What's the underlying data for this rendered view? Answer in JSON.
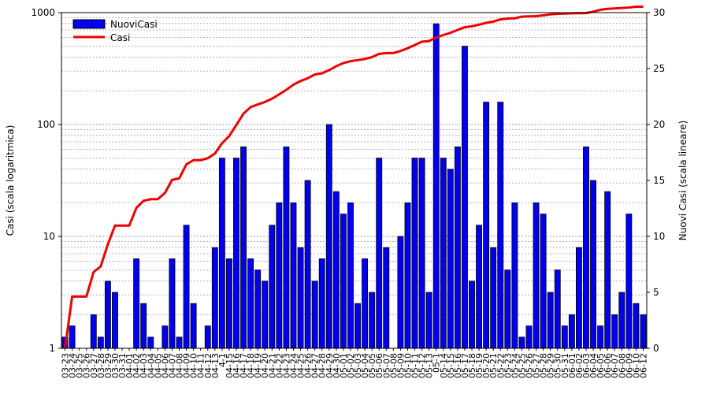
{
  "chart_data": {
    "type": "bar+line",
    "x_categories": [
      "03-23",
      "03-24",
      "03-25",
      "03-26",
      "03-27",
      "03-28",
      "03-29",
      "03-30",
      "03-31",
      "04-01",
      "04-02",
      "04-03",
      "04-04",
      "04-05",
      "04-06",
      "04-07",
      "04-08",
      "04-09",
      "04-10",
      "04-11",
      "04-12",
      "04-13",
      "04-14",
      "04-15",
      "04-16",
      "04-17",
      "04-18",
      "04-19",
      "04-20",
      "04-21",
      "04-22",
      "04-23",
      "04-24",
      "04-25",
      "04-26",
      "04-27",
      "04-28",
      "04-29",
      "04-30",
      "05-01",
      "05-02",
      "05-03",
      "05-04",
      "05-05",
      "05-06",
      "05-07",
      "05-08",
      "05-09",
      "05-10",
      "05-11",
      "05-12",
      "05-13",
      "05-14",
      "05-15",
      "05-16",
      "05-17",
      "05-18",
      "05-19",
      "05-20",
      "05-21",
      "05-22",
      "05-23",
      "05-24",
      "05-25",
      "05-26",
      "05-27",
      "05-28",
      "05-29",
      "05-30",
      "05-31",
      "06-01",
      "06-02",
      "06-03",
      "06-04",
      "06-05",
      "06-06",
      "06-07",
      "06-08",
      "06-09",
      "06-10",
      "06-11",
      "06-12"
    ],
    "x_tick_labels": [
      "03-23",
      "03-24",
      "03-25",
      "03-26",
      "03-27",
      "03-28",
      "03-29",
      "03-30",
      "03-31",
      "04-01",
      "04-02",
      "04-03",
      "04-04",
      "04-05",
      "04-06",
      "04-07",
      "04-08",
      "04-09",
      "04-10",
      "04-11",
      "04-12",
      "04-13",
      "4-1",
      "04-15",
      "04-16",
      "04-17",
      "04-18",
      "04-19",
      "04-20",
      "04-21",
      "04-22",
      "04-23",
      "04-24",
      "04-25",
      "04-26",
      "04-27",
      "04-28",
      "04-29",
      "04-30",
      "05-01",
      "05-02",
      "05-03",
      "05-04",
      "05-05",
      "05-06",
      "05-07",
      "05-08",
      "05-09",
      "05-10",
      "05-11",
      "05-12",
      "05-13",
      "05-1",
      "05-14",
      "05-15",
      "05-16",
      "05-17",
      "05-18",
      "05-19",
      "05-20",
      "05-21",
      "05-22",
      "05-23",
      "05-24",
      "05-25",
      "05-26",
      "05-27",
      "05-28",
      "05-29",
      "05-30",
      "05-31",
      "06-01",
      "06-02",
      "06-03",
      "06-04",
      "06-05",
      "06-06",
      "06-07",
      "06-08",
      "06-09",
      "06-10",
      "06-12"
    ],
    "series": [
      {
        "name": "NuoviCasi",
        "type": "bar",
        "axis": "right",
        "color": "#0000ee",
        "values": [
          1,
          2,
          0,
          0,
          3,
          1,
          6,
          5,
          0,
          0,
          8,
          4,
          1,
          0,
          2,
          8,
          1,
          11,
          4,
          0,
          2,
          9,
          17,
          8,
          17,
          18,
          8,
          7,
          6,
          11,
          13,
          18,
          13,
          9,
          15,
          6,
          8,
          20,
          14,
          12,
          13,
          4,
          8,
          5,
          17,
          9,
          0,
          10,
          13,
          17,
          17,
          5,
          29,
          17,
          16,
          18,
          27,
          6,
          11,
          22,
          9,
          22,
          7,
          13,
          1,
          2,
          13,
          12,
          5,
          7,
          2,
          3,
          9,
          18,
          15,
          2,
          14,
          3,
          5,
          12,
          4,
          3
        ]
      },
      {
        "name": "Casi",
        "type": "line",
        "axis": "left",
        "color": "#ee0000",
        "values": [
          1,
          2.9,
          2.9,
          2.9,
          4.8,
          5.4,
          8.5,
          12.5,
          12.5,
          12.5,
          18,
          20.8,
          21.5,
          21.5,
          24.5,
          32,
          33,
          44,
          48,
          48,
          50,
          55,
          68,
          79,
          99,
          125,
          143,
          151,
          159,
          170,
          186,
          204,
          227,
          245,
          259,
          280,
          287,
          306,
          332,
          354,
          368,
          376,
          385,
          400,
          428,
          435,
          435,
          454,
          480,
          513,
          550,
          557,
          600,
          630,
          660,
          700,
          740,
          755,
          780,
          810,
          830,
          870,
          885,
          890,
          920,
          925,
          930,
          945,
          965,
          975,
          980,
          985,
          988,
          990,
          1020,
          1060,
          1080,
          1090,
          1100,
          1110,
          1130,
          1130
        ]
      }
    ],
    "y_left": {
      "label": "Casi (scala logaritmica)",
      "scale": "log",
      "range": [
        1,
        1000
      ],
      "ticks": [
        "1",
        "10",
        "100",
        "1000"
      ]
    },
    "y_right": {
      "label": "Nuovi Casi (scala lineare)",
      "scale": "linear",
      "range": [
        0,
        30
      ],
      "ticks": [
        "0",
        "5",
        "10",
        "15",
        "20",
        "25",
        "30"
      ]
    },
    "grid": "horizontal-log-minor",
    "legend": {
      "placement": "top-left",
      "entries": [
        "NuoviCasi",
        "Casi"
      ]
    }
  }
}
